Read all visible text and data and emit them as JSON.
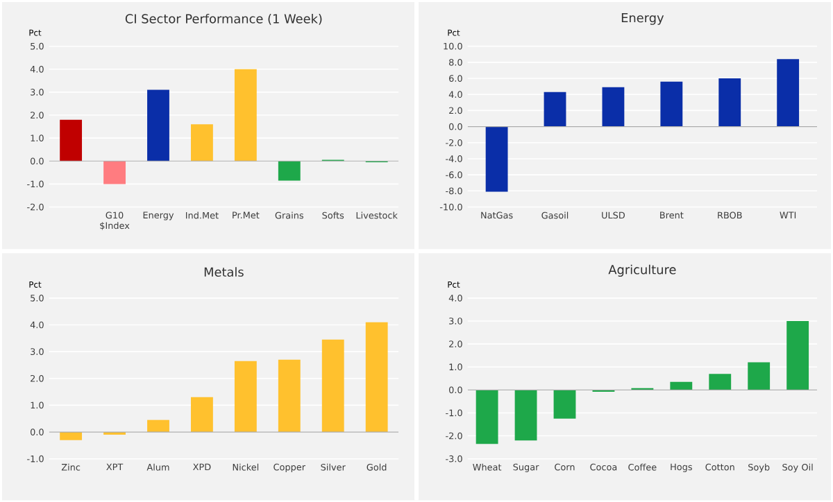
{
  "chart_data": [
    {
      "type": "bar",
      "title": "CI Sector Performance (1 Week)",
      "ylabel": "Pct",
      "categories": [
        null,
        "G10 $Index",
        "Energy",
        "Ind.Met",
        "Pr.Met",
        "Grains",
        "Softs",
        "Livestock"
      ],
      "values": [
        1.8,
        -1.0,
        3.1,
        1.6,
        4.0,
        -0.85,
        0.05,
        -0.05
      ],
      "colors": [
        "#c00000",
        "#ff7c80",
        "#0a2ea8",
        "#ffc12e",
        "#ffc12e",
        "#1ea84a",
        "#1ea84a",
        "#1ea84a"
      ],
      "ylim": [
        -2,
        5
      ],
      "yticks": [
        {
          "value": -2,
          "label": "-2.0"
        },
        {
          "value": -1,
          "label": "-1.0"
        },
        {
          "value": 0,
          "label": "0.0"
        },
        {
          "value": 1,
          "label": "1.0"
        },
        {
          "value": 2,
          "label": "2.0"
        },
        {
          "value": 3,
          "label": "3.0"
        },
        {
          "value": 4,
          "label": "4.0"
        },
        {
          "value": 5,
          "label": "5.0"
        }
      ],
      "grid": "y"
    },
    {
      "type": "bar",
      "title": "Energy",
      "ylabel": "Pct",
      "categories": [
        "NatGas",
        "Gasoil",
        "ULSD",
        "Brent",
        "RBOB",
        "WTI"
      ],
      "values": [
        -8.1,
        4.3,
        4.9,
        5.6,
        6.0,
        8.4
      ],
      "colors": [
        "#0a2ea8",
        "#0a2ea8",
        "#0a2ea8",
        "#0a2ea8",
        "#0a2ea8",
        "#0a2ea8"
      ],
      "ylim": [
        -10,
        10
      ],
      "yticks": [
        {
          "value": -10,
          "label": "-10.0"
        },
        {
          "value": -8,
          "label": "-8.0"
        },
        {
          "value": -6,
          "label": "-6.0"
        },
        {
          "value": -4,
          "label": "-4.0"
        },
        {
          "value": -2,
          "label": "-2.0"
        },
        {
          "value": 0,
          "label": "0.0"
        },
        {
          "value": 2,
          "label": "2.0"
        },
        {
          "value": 4,
          "label": "4.0"
        },
        {
          "value": 6,
          "label": "6.0"
        },
        {
          "value": 8,
          "label": "8.0"
        },
        {
          "value": 10,
          "label": "10.0"
        }
      ],
      "grid": "y"
    },
    {
      "type": "bar",
      "title": "Metals",
      "ylabel": "Pct",
      "categories": [
        "Zinc",
        "XPT",
        "Alum",
        "XPD",
        "Nickel",
        "Copper",
        "Silver",
        "Gold"
      ],
      "values": [
        -0.3,
        -0.1,
        0.45,
        1.3,
        2.65,
        2.7,
        3.45,
        4.1
      ],
      "colors": [
        "#ffc12e",
        "#ffc12e",
        "#ffc12e",
        "#ffc12e",
        "#ffc12e",
        "#ffc12e",
        "#ffc12e",
        "#ffc12e"
      ],
      "ylim": [
        -1,
        5
      ],
      "yticks": [
        {
          "value": -1,
          "label": "-1.0"
        },
        {
          "value": 0,
          "label": "0.0"
        },
        {
          "value": 1,
          "label": "1.0"
        },
        {
          "value": 2,
          "label": "2.0"
        },
        {
          "value": 3,
          "label": "3.0"
        },
        {
          "value": 4,
          "label": "4.0"
        },
        {
          "value": 5,
          "label": "5.0"
        }
      ],
      "grid": "y"
    },
    {
      "type": "bar",
      "title": "Agriculture",
      "ylabel": "Pct",
      "categories": [
        "Wheat",
        "Sugar",
        "Corn",
        "Cocoa",
        "Coffee",
        "Hogs",
        "Cotton",
        "Soyb",
        "Soy Oil"
      ],
      "values": [
        -2.35,
        -2.2,
        -1.25,
        -0.08,
        0.08,
        0.35,
        0.7,
        1.2,
        3.0
      ],
      "colors": [
        "#1ea84a",
        "#1ea84a",
        "#1ea84a",
        "#1ea84a",
        "#1ea84a",
        "#1ea84a",
        "#1ea84a",
        "#1ea84a",
        "#1ea84a"
      ],
      "ylim": [
        -3,
        4
      ],
      "yticks": [
        {
          "value": -3,
          "label": "-3.0"
        },
        {
          "value": -2,
          "label": "-2.0"
        },
        {
          "value": -1,
          "label": "-1.0"
        },
        {
          "value": 0,
          "label": "0.0"
        },
        {
          "value": 1,
          "label": "1.0"
        },
        {
          "value": 2,
          "label": "2.0"
        },
        {
          "value": 3,
          "label": "3.0"
        },
        {
          "value": 4,
          "label": "4.0"
        }
      ],
      "grid": "y"
    }
  ]
}
